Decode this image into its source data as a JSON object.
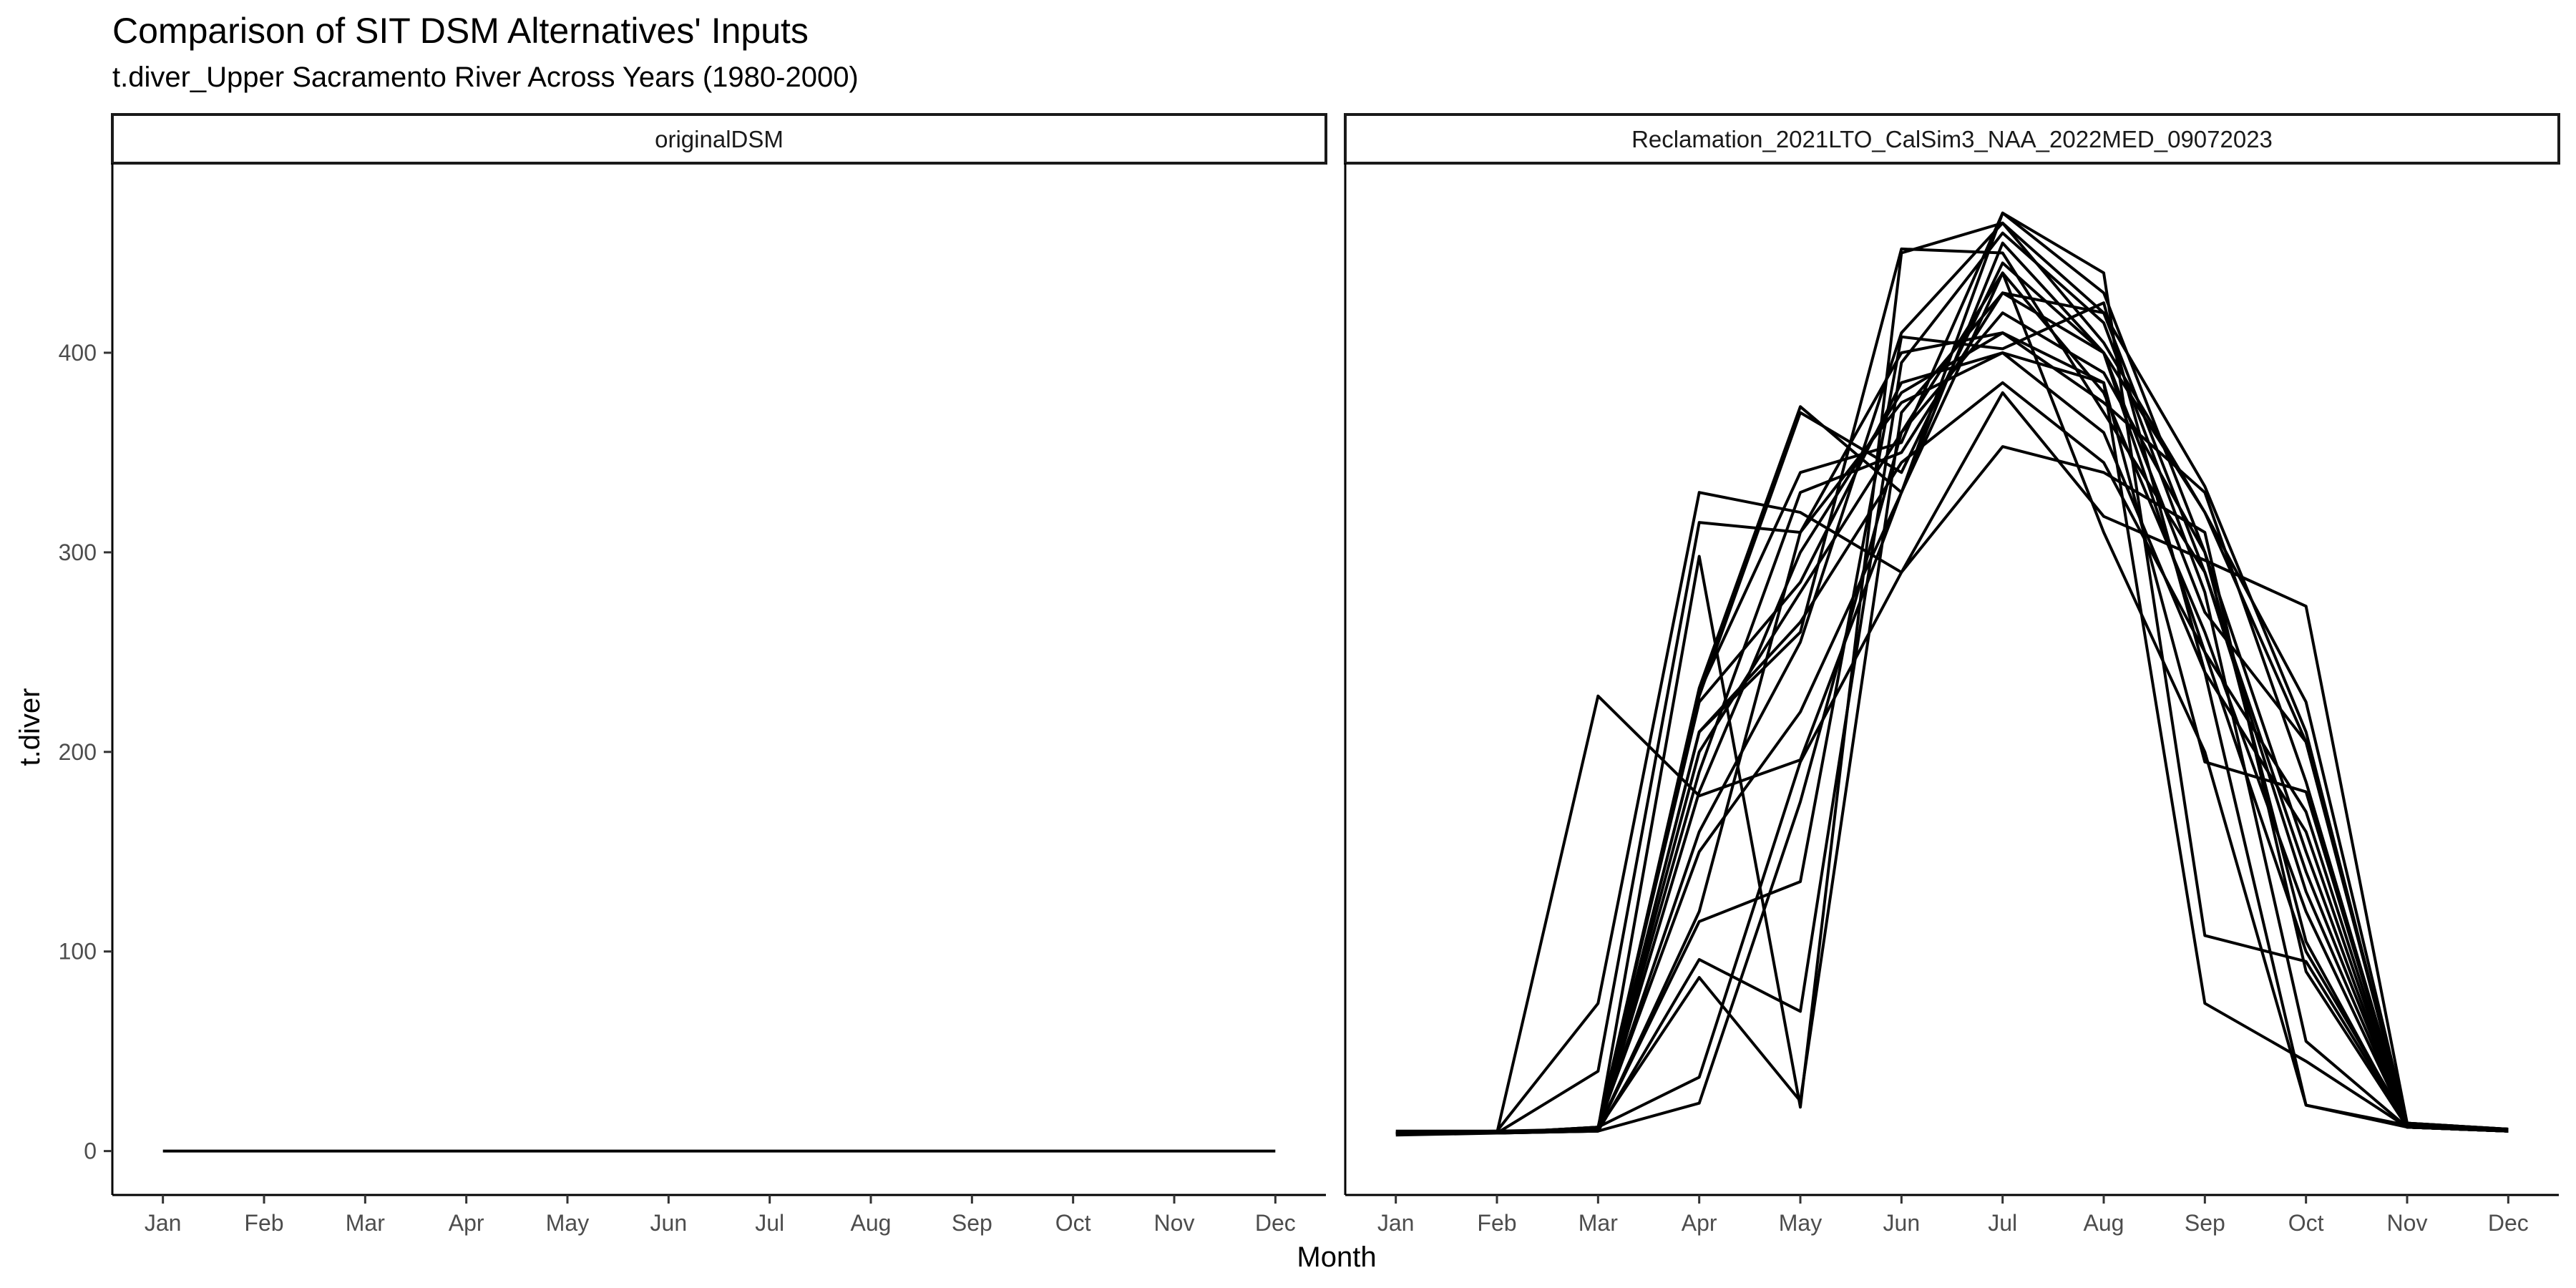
{
  "chart_data": {
    "type": "line",
    "title": "Comparison of SIT DSM Alternatives' Inputs",
    "subtitle": "t.diver_Upper Sacramento River Across Years (1980-2000)",
    "xlabel": "Month",
    "ylabel": "t.diver",
    "categories": [
      "Jan",
      "Feb",
      "Mar",
      "Apr",
      "May",
      "Jun",
      "Jul",
      "Aug",
      "Sep",
      "Oct",
      "Nov",
      "Dec"
    ],
    "ylim": [
      -22,
      495
    ],
    "yticks": [
      0,
      100,
      200,
      300,
      400
    ],
    "grid": false,
    "legend": "none",
    "line_color": "#000000",
    "panels": [
      {
        "facet": "originalDSM",
        "series": [
          {
            "values": [
              0,
              0,
              0,
              0,
              0,
              0,
              0,
              0,
              0,
              0,
              0,
              0
            ]
          }
        ]
      },
      {
        "facet": "Reclamation_2021LTO_CalSim3_NAA_2022MED_09072023",
        "series": [
          {
            "values": [
              9,
              9,
              228,
              178,
              196,
              330,
              470,
              440,
              108,
              95,
              13,
              10
            ]
          },
          {
            "values": [
              10,
              10,
              74,
              330,
              320,
              290,
              380,
              318,
              296,
              273,
              14,
              11
            ]
          },
          {
            "values": [
              9,
              9,
              40,
              315,
              310,
              400,
              410,
              385,
              195,
              180,
              13,
              11
            ]
          },
          {
            "values": [
              9,
              9,
              11,
              298,
              22,
              450,
              465,
              420,
              333,
              210,
              12,
              10
            ]
          },
          {
            "values": [
              8,
              9,
              11,
              232,
              373,
              330,
              455,
              400,
              320,
              225,
              13,
              11
            ]
          },
          {
            "values": [
              9,
              9,
              11,
              228,
              370,
              340,
              445,
              400,
              270,
              205,
              13,
              10
            ]
          },
          {
            "values": [
              9,
              9,
              12,
              225,
              285,
              385,
              400,
              385,
              74,
              45,
              12,
              10
            ]
          },
          {
            "values": [
              9,
              10,
              11,
              115,
              135,
              408,
              402,
              425,
              240,
              23,
              13,
              10
            ]
          },
          {
            "values": [
              9,
              9,
              10,
              96,
              70,
              395,
              460,
              415,
              280,
              55,
              12,
              10
            ]
          },
          {
            "values": [
              9,
              9,
              11,
              87,
              25,
              370,
              430,
              400,
              250,
              100,
              14,
              11
            ]
          },
          {
            "values": [
              9,
              9,
              12,
              37,
              195,
              290,
              353,
              340,
              310,
              90,
              12,
              10
            ]
          },
          {
            "values": [
              9,
              9,
              10,
              24,
              175,
              360,
              440,
              310,
              200,
              23,
              12,
              10
            ]
          },
          {
            "values": [
              9,
              9,
              11,
              210,
              260,
              452,
              450,
              370,
              290,
              140,
              13,
              11
            ]
          },
          {
            "values": [
              9,
              9,
              10,
              180,
              300,
              380,
              410,
              375,
              330,
              185,
              13,
              10
            ]
          },
          {
            "values": [
              9,
              9,
              11,
              230,
              340,
              355,
              470,
              430,
              300,
              150,
              12,
              10
            ]
          },
          {
            "values": [
              9,
              9,
              11,
              200,
              280,
              360,
              420,
              390,
              300,
              105,
              12,
              10
            ]
          },
          {
            "values": [
              9,
              9,
              11,
              160,
              255,
              410,
              465,
              405,
              320,
              205,
              14,
              11
            ]
          },
          {
            "values": [
              9,
              9,
              12,
              150,
              220,
              330,
              440,
              380,
              260,
              120,
              13,
              10
            ]
          },
          {
            "values": [
              9,
              9,
              11,
              120,
              310,
              375,
              400,
              360,
              240,
              160,
              12,
              10
            ]
          },
          {
            "values": [
              9,
              9,
              11,
              190,
              330,
              350,
              430,
              420,
              290,
              130,
              13,
              11
            ]
          },
          {
            "values": [
              9,
              9,
              11,
              210,
              265,
              345,
              385,
              345,
              250,
              170,
              12,
              10
            ]
          }
        ]
      }
    ]
  }
}
